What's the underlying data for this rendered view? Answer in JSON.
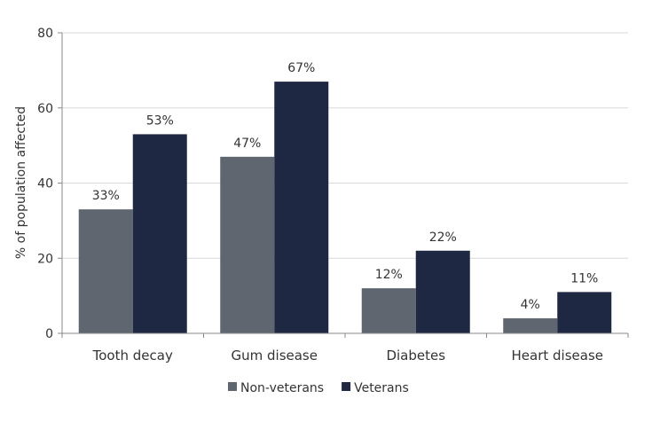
{
  "chart_data": {
    "type": "bar",
    "title": "",
    "xlabel": "",
    "ylabel": "% of population affected",
    "ylim": [
      0,
      80
    ],
    "yticks": [
      0,
      20,
      40,
      60,
      80
    ],
    "grid": true,
    "legend_position": "bottom",
    "categories": [
      "Tooth decay",
      "Gum disease",
      "Diabetes",
      "Heart disease"
    ],
    "series": [
      {
        "name": "Non-veterans",
        "values": [
          33,
          47,
          12,
          4
        ],
        "labels": [
          "33%",
          "47%",
          "12%",
          "4%"
        ],
        "color": "#5f6670"
      },
      {
        "name": "Veterans",
        "values": [
          53,
          67,
          22,
          11
        ],
        "labels": [
          "53%",
          "67%",
          "22%",
          "11%"
        ],
        "color": "#1f2843"
      }
    ]
  }
}
